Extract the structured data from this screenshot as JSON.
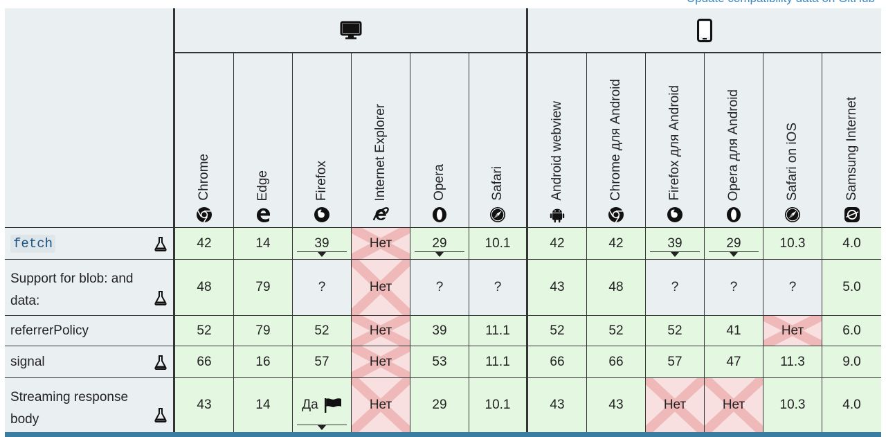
{
  "update_link": "Update compatibility data on GitHub",
  "platforms": {
    "desktop_icon": "desktop-icon",
    "mobile_icon": "mobile-phone-icon"
  },
  "browsers": [
    {
      "name": "Chrome",
      "icon": "chrome-icon"
    },
    {
      "name": "Edge",
      "icon": "edge-icon"
    },
    {
      "name": "Firefox",
      "icon": "firefox-icon"
    },
    {
      "name": "Internet Explorer",
      "icon": "ie-icon"
    },
    {
      "name": "Opera",
      "icon": "opera-icon"
    },
    {
      "name": "Safari",
      "icon": "safari-icon"
    },
    {
      "name": "Android webview",
      "icon": "android-icon"
    },
    {
      "name": "Chrome для Android",
      "icon": "chrome-icon"
    },
    {
      "name": "Firefox для Android",
      "icon": "firefox-icon"
    },
    {
      "name": "Opera для Android",
      "icon": "opera-icon"
    },
    {
      "name": "Safari on iOS",
      "icon": "safari-icon"
    },
    {
      "name": "Samsung Internet",
      "icon": "samsung-internet-icon"
    }
  ],
  "rows": [
    {
      "feature": "fetch",
      "code": true,
      "experimental": true,
      "cells": [
        {
          "v": "42",
          "s": "yes"
        },
        {
          "v": "14",
          "s": "yes"
        },
        {
          "v": "39",
          "s": "yes",
          "notes": true
        },
        {
          "v": "Нет",
          "s": "no"
        },
        {
          "v": "29",
          "s": "yes",
          "notes": true
        },
        {
          "v": "10.1",
          "s": "yes"
        },
        {
          "v": "42",
          "s": "yes"
        },
        {
          "v": "42",
          "s": "yes"
        },
        {
          "v": "39",
          "s": "yes",
          "notes": true
        },
        {
          "v": "29",
          "s": "yes",
          "notes": true
        },
        {
          "v": "10.3",
          "s": "yes"
        },
        {
          "v": "4.0",
          "s": "yes"
        }
      ]
    },
    {
      "feature": "Support for blob: and data:",
      "code": false,
      "experimental": true,
      "cells": [
        {
          "v": "48",
          "s": "yes"
        },
        {
          "v": "79",
          "s": "yes"
        },
        {
          "v": "?",
          "s": "unk"
        },
        {
          "v": "Нет",
          "s": "no"
        },
        {
          "v": "?",
          "s": "unk"
        },
        {
          "v": "?",
          "s": "unk"
        },
        {
          "v": "43",
          "s": "yes"
        },
        {
          "v": "48",
          "s": "yes"
        },
        {
          "v": "?",
          "s": "unk"
        },
        {
          "v": "?",
          "s": "unk"
        },
        {
          "v": "?",
          "s": "unk"
        },
        {
          "v": "5.0",
          "s": "yes"
        }
      ]
    },
    {
      "feature": "referrerPolicy",
      "code": false,
      "experimental": false,
      "cells": [
        {
          "v": "52",
          "s": "yes"
        },
        {
          "v": "79",
          "s": "yes"
        },
        {
          "v": "52",
          "s": "yes"
        },
        {
          "v": "Нет",
          "s": "no"
        },
        {
          "v": "39",
          "s": "yes"
        },
        {
          "v": "11.1",
          "s": "yes"
        },
        {
          "v": "52",
          "s": "yes"
        },
        {
          "v": "52",
          "s": "yes"
        },
        {
          "v": "52",
          "s": "yes"
        },
        {
          "v": "41",
          "s": "yes"
        },
        {
          "v": "Нет",
          "s": "no"
        },
        {
          "v": "6.0",
          "s": "yes"
        }
      ]
    },
    {
      "feature": "signal",
      "code": false,
      "experimental": true,
      "cells": [
        {
          "v": "66",
          "s": "yes"
        },
        {
          "v": "16",
          "s": "yes"
        },
        {
          "v": "57",
          "s": "yes"
        },
        {
          "v": "Нет",
          "s": "no"
        },
        {
          "v": "53",
          "s": "yes"
        },
        {
          "v": "11.1",
          "s": "yes"
        },
        {
          "v": "66",
          "s": "yes"
        },
        {
          "v": "66",
          "s": "yes"
        },
        {
          "v": "57",
          "s": "yes"
        },
        {
          "v": "47",
          "s": "yes"
        },
        {
          "v": "11.3",
          "s": "yes"
        },
        {
          "v": "9.0",
          "s": "yes"
        }
      ]
    },
    {
      "feature": "Streaming response body",
      "code": false,
      "experimental": true,
      "cells": [
        {
          "v": "43",
          "s": "yes"
        },
        {
          "v": "14",
          "s": "yes"
        },
        {
          "v": "Да",
          "s": "yes",
          "notes": true,
          "flag": true
        },
        {
          "v": "Нет",
          "s": "no"
        },
        {
          "v": "29",
          "s": "yes"
        },
        {
          "v": "10.1",
          "s": "yes"
        },
        {
          "v": "43",
          "s": "yes"
        },
        {
          "v": "43",
          "s": "yes"
        },
        {
          "v": "Нет",
          "s": "no"
        },
        {
          "v": "Нет",
          "s": "no"
        },
        {
          "v": "10.3",
          "s": "yes"
        },
        {
          "v": "4.0",
          "s": "yes"
        }
      ]
    }
  ]
}
